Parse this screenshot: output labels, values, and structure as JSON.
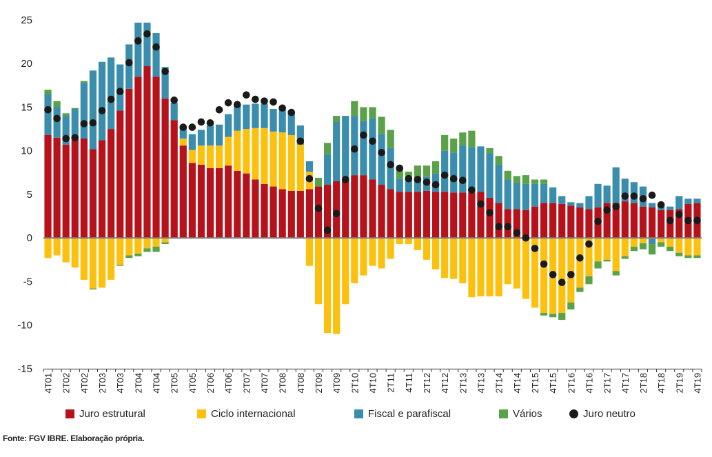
{
  "source": "Fonte: FGV IBRE. Elaboração própria.",
  "colors": {
    "juro_estrutural": "#b5121b",
    "ciclo_internacional": "#fcc10f",
    "fiscal": "#3a8dad",
    "varios": "#5aa14a",
    "juro_neutro": "#1a1a1a",
    "zero_line": "#7f7f7f"
  },
  "legend": [
    {
      "key": "juro_estrutural",
      "label": "Juro estrutural",
      "kind": "bar"
    },
    {
      "key": "ciclo_internacional",
      "label": "Ciclo internacional",
      "kind": "bar"
    },
    {
      "key": "fiscal",
      "label": "Fiscal e parafiscal",
      "kind": "bar"
    },
    {
      "key": "varios",
      "label": "Vários",
      "kind": "bar"
    },
    {
      "key": "juro_neutro",
      "label": "Juro neutro",
      "kind": "dot"
    }
  ],
  "chart_data": {
    "type": "bar",
    "stacked": true,
    "ylim": [
      -15,
      25
    ],
    "yticks": [
      -15,
      -10,
      -5,
      0,
      5,
      10,
      15,
      20,
      25
    ],
    "x_tick_labels": [
      "4T01",
      "2T02",
      "4T02",
      "2T03",
      "4T03",
      "2T04",
      "4T04",
      "2T05",
      "4T05",
      "2T06",
      "4T06",
      "2T07",
      "4T07",
      "2T08",
      "4T08",
      "2T09",
      "4T09",
      "2T10",
      "4T10",
      "2T11",
      "4T11",
      "2T12",
      "4T12",
      "2T13",
      "4T13",
      "2T14",
      "4T14",
      "2T15",
      "4T15",
      "2T16",
      "4T16",
      "2T17",
      "4T17",
      "2T18",
      "4T18",
      "2T19",
      "4T19"
    ],
    "categories": [
      "4T01",
      "1T02",
      "2T02",
      "3T02",
      "4T02",
      "1T03",
      "2T03",
      "3T03",
      "4T03",
      "1T04",
      "2T04",
      "3T04",
      "4T04",
      "1T05",
      "2T05",
      "3T05",
      "4T05",
      "1T06",
      "2T06",
      "3T06",
      "4T06",
      "1T07",
      "2T07",
      "3T07",
      "4T07",
      "1T08",
      "2T08",
      "3T08",
      "4T08",
      "1T09",
      "2T09",
      "3T09",
      "4T09",
      "1T10",
      "2T10",
      "3T10",
      "4T10",
      "1T11",
      "2T11",
      "3T11",
      "4T11",
      "1T12",
      "2T12",
      "3T12",
      "4T12",
      "1T13",
      "2T13",
      "3T13",
      "4T13",
      "1T14",
      "2T14",
      "3T14",
      "4T14",
      "1T15",
      "2T15",
      "3T15",
      "4T15",
      "1T16",
      "2T16",
      "3T16",
      "4T16",
      "1T17",
      "2T17",
      "3T17",
      "4T17",
      "1T18",
      "2T18",
      "3T18",
      "4T18",
      "1T19",
      "2T19",
      "3T19",
      "4T19"
    ],
    "series": [
      {
        "key": "juro_estrutural",
        "name": "Juro estrutural",
        "values": [
          11.8,
          11.5,
          10.7,
          11.3,
          11.4,
          10.2,
          11.2,
          12.5,
          14.6,
          17.1,
          18.5,
          19.7,
          18.5,
          16.0,
          13.5,
          10.6,
          8.6,
          8.4,
          8.0,
          8.0,
          8.3,
          7.7,
          7.4,
          6.7,
          6.2,
          5.9,
          5.6,
          5.4,
          5.4,
          5.6,
          5.9,
          6.1,
          6.5,
          6.7,
          7.2,
          7.2,
          6.7,
          6.1,
          5.6,
          5.3,
          5.3,
          5.3,
          5.4,
          5.3,
          5.3,
          5.2,
          5.2,
          5.2,
          5.3,
          4.6,
          4.0,
          3.3,
          3.3,
          3.2,
          3.6,
          4.0,
          4.0,
          3.9,
          3.7,
          3.5,
          3.3,
          3.5,
          4.0,
          4.0,
          4.2,
          4.0,
          3.6,
          3.5,
          3.2,
          3.2,
          3.3,
          3.9,
          4.0
        ]
      },
      {
        "key": "ciclo_internacional",
        "name": "Ciclo internacional",
        "pos": [
          0,
          0,
          0,
          0,
          0,
          0,
          0,
          0,
          0,
          0,
          0,
          0,
          0,
          0,
          0,
          0.8,
          1.5,
          2.2,
          2.6,
          2.6,
          3.3,
          4.6,
          5.1,
          5.9,
          6.4,
          6.3,
          6.5,
          6.4,
          5.3,
          2.0,
          0,
          0,
          0,
          0,
          0,
          0,
          0,
          0,
          0,
          0,
          0,
          0,
          0,
          0,
          0,
          0,
          0,
          0,
          0,
          0,
          0,
          0,
          0,
          0,
          0,
          0,
          0,
          0,
          0,
          0,
          0,
          0,
          0,
          0,
          0,
          0,
          0,
          0,
          0,
          0,
          0,
          0,
          0
        ],
        "neg": [
          -2.3,
          -2.0,
          -2.8,
          -3.4,
          -4.8,
          -5.8,
          -5.7,
          -4.8,
          -3.1,
          -2.0,
          -1.8,
          -1.2,
          -1.0,
          -0.5,
          0,
          0,
          0,
          0,
          0,
          0,
          0,
          0,
          0,
          0,
          0,
          0,
          0,
          0,
          0,
          -3.2,
          -7.6,
          -10.9,
          -11.0,
          -7.6,
          -5.2,
          -4.3,
          -3.2,
          -3.5,
          -2.4,
          -0.7,
          -0.7,
          -1.4,
          -2.5,
          -3.6,
          -4.6,
          -4.7,
          -5.2,
          -6.8,
          -6.7,
          -6.7,
          -6.7,
          -5.3,
          -5.8,
          -7.0,
          -8.0,
          -8.6,
          -8.7,
          -8.6,
          -7.4,
          -5.7,
          -4.4,
          -2.7,
          -2.5,
          -3.8,
          -2.1,
          -1.0,
          -0.6,
          -0.1,
          -0.5,
          -1.0,
          -1.7,
          -2.0,
          -2.0
        ]
      },
      {
        "key": "fiscal",
        "name": "Fiscal e parafiscal",
        "pos": [
          4.7,
          3.5,
          3.3,
          3.5,
          6.4,
          9.0,
          9.0,
          8.2,
          5.3,
          5.1,
          6.2,
          5.0,
          5.0,
          3.6,
          2.0,
          1.5,
          1.8,
          1.8,
          2.3,
          2.4,
          2.6,
          3.0,
          2.8,
          2.8,
          2.8,
          2.6,
          2.6,
          2.6,
          2.2,
          1.2,
          0,
          3.5,
          6.8,
          7.3,
          6.8,
          6.2,
          7.0,
          5.8,
          4.7,
          1.5,
          1.5,
          1.3,
          1.6,
          2.1,
          4.7,
          4.6,
          5.4,
          5.2,
          5.2,
          5.1,
          4.4,
          3.4,
          3.0,
          3.0,
          2.6,
          2.2,
          1.8,
          0.9,
          0.4,
          0.5,
          1.5,
          2.7,
          2.0,
          4.1,
          2.6,
          2.4,
          2.3,
          0.5,
          0.5,
          0.4,
          1.5,
          0.6,
          0.5
        ],
        "neg": [
          0,
          0,
          0,
          0,
          0,
          0,
          0,
          0,
          0,
          0,
          0,
          0,
          0,
          0,
          0,
          0,
          0,
          0,
          0,
          0,
          0,
          0,
          0,
          0,
          0,
          0,
          0,
          0,
          0,
          0,
          0,
          0,
          0,
          0,
          0,
          0,
          0,
          0,
          0,
          0,
          0,
          0,
          0,
          0,
          0,
          0,
          0,
          0,
          0,
          0,
          0,
          0,
          0,
          0,
          0,
          0,
          0,
          0,
          0,
          0,
          0,
          0,
          0,
          0,
          0,
          0,
          0,
          -0.6,
          0,
          0,
          0,
          0,
          0
        ]
      },
      {
        "key": "varios",
        "name": "Vários",
        "pos": [
          0.5,
          0.7,
          0.3,
          0.1,
          0.2,
          0,
          0,
          0,
          0,
          0,
          0,
          0,
          0,
          0,
          0,
          0,
          0,
          0,
          0,
          0,
          0,
          0,
          0,
          0,
          0,
          0,
          0,
          0,
          0,
          0,
          1.0,
          1.3,
          0.7,
          0,
          1.7,
          1.6,
          1.3,
          2.0,
          2.1,
          1.3,
          0.8,
          1.7,
          1.3,
          1.4,
          1.8,
          1.6,
          1.5,
          1.9,
          0,
          0.6,
          1.0,
          1.0,
          0.8,
          1.0,
          0.5,
          0.5,
          0,
          0,
          0,
          0,
          0,
          0,
          0,
          0,
          0,
          0,
          0,
          0,
          0,
          0,
          0,
          0,
          0
        ],
        "neg": [
          0,
          0,
          0,
          0,
          0,
          -0.1,
          0,
          0,
          -0.1,
          -0.3,
          -0.3,
          -0.4,
          -0.6,
          -0.2,
          0,
          0,
          0,
          0,
          0,
          0,
          0,
          0,
          0,
          0,
          0,
          0,
          0,
          0,
          0,
          0,
          0,
          0,
          0,
          0,
          0,
          0,
          0,
          0,
          0,
          0,
          0,
          0,
          0,
          0,
          0,
          0,
          0,
          0,
          0,
          0,
          0,
          0,
          0,
          0,
          0,
          -0.3,
          -0.4,
          -0.8,
          -0.8,
          -0.5,
          -0.9,
          -0.8,
          -0.2,
          -0.5,
          -0.3,
          -0.5,
          -0.7,
          -1.2,
          -0.5,
          -0.5,
          -0.4,
          -0.3,
          -0.3
        ]
      },
      {
        "key": "juro_neutro",
        "name": "Juro neutro",
        "type": "scatter",
        "values": [
          14.7,
          13.7,
          11.4,
          11.5,
          13.1,
          13.2,
          14.6,
          15.9,
          16.8,
          20.1,
          22.6,
          23.4,
          21.9,
          19.1,
          15.8,
          12.7,
          12.7,
          13.3,
          13.2,
          14.7,
          15.5,
          15.3,
          16.4,
          15.9,
          15.7,
          15.6,
          14.9,
          14.4,
          11.1,
          6.8,
          3.4,
          0.9,
          2.8,
          6.7,
          10.2,
          11.8,
          11.1,
          9.8,
          8.4,
          8.0,
          6.8,
          6.7,
          6.4,
          6.1,
          7.2,
          6.8,
          6.6,
          5.5,
          3.9,
          2.9,
          1.3,
          1.3,
          0.6,
          0.0,
          -1.2,
          -3.0,
          -4.2,
          -5.1,
          -4.2,
          -2.3,
          -0.7,
          1.9,
          3.2,
          3.6,
          4.8,
          4.8,
          4.5,
          4.9,
          3.8,
          2.0,
          2.7,
          2.0,
          2.0
        ]
      }
    ]
  }
}
